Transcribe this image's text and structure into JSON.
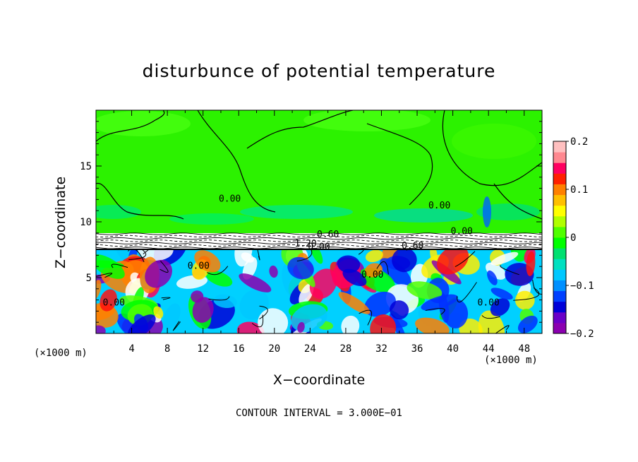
{
  "chart_data": {
    "type": "heatmap",
    "title": "disturbunce of potential temperature",
    "xlabel": "X−coordinate",
    "ylabel": "Z−coordinate",
    "x_unit_left": "(×1000 m)",
    "x_unit_right": "(×1000 m)",
    "xlim": [
      0,
      50
    ],
    "ylim": [
      0,
      20
    ],
    "x_ticks": [
      4,
      8,
      12,
      16,
      20,
      24,
      28,
      32,
      36,
      40,
      44,
      48
    ],
    "y_ticks": [
      5,
      10,
      15
    ],
    "colorbar": {
      "min": -0.2,
      "max": 0.2,
      "ticks": [
        0.2,
        0.1,
        0,
        -0.1,
        -0.2
      ],
      "tick_labels": [
        "0.2",
        "0.1",
        "0",
        "−0.1",
        "−0.2"
      ],
      "colors": [
        "#8b00b0",
        "#6a00c8",
        "#0000d8",
        "#0040ff",
        "#0090ff",
        "#00c8ff",
        "#00e0c0",
        "#00e070",
        "#00ff00",
        "#50ff00",
        "#b0ff00",
        "#ffff00",
        "#ffc000",
        "#ff8000",
        "#ff2000",
        "#ff0060",
        "#ff8890",
        "#ffc0c0"
      ]
    },
    "contour_labels": [
      {
        "text": "0.00",
        "x": 15,
        "z": 11.8
      },
      {
        "text": "0.00",
        "x": 38.5,
        "z": 11.2
      },
      {
        "text": "0.60",
        "x": 26,
        "z": 8.6
      },
      {
        "text": "1.20",
        "x": 23.5,
        "z": 7.8
      },
      {
        "text": "0.00",
        "x": 25,
        "z": 7.5
      },
      {
        "text": "0.60",
        "x": 35.5,
        "z": 7.6
      },
      {
        "text": "0.00",
        "x": 41,
        "z": 8.9
      },
      {
        "text": "0.00",
        "x": 11.5,
        "z": 5.8
      },
      {
        "text": "0.00",
        "x": 2,
        "z": 2.5
      },
      {
        "text": "0.00",
        "x": 44,
        "z": 2.5
      },
      {
        "text": "0.00",
        "x": 31,
        "z": 5
      }
    ],
    "grid": false,
    "legend": "colorbar-right"
  },
  "contour_interval_text": "CONTOUR INTERVAL = 3.000E−01"
}
